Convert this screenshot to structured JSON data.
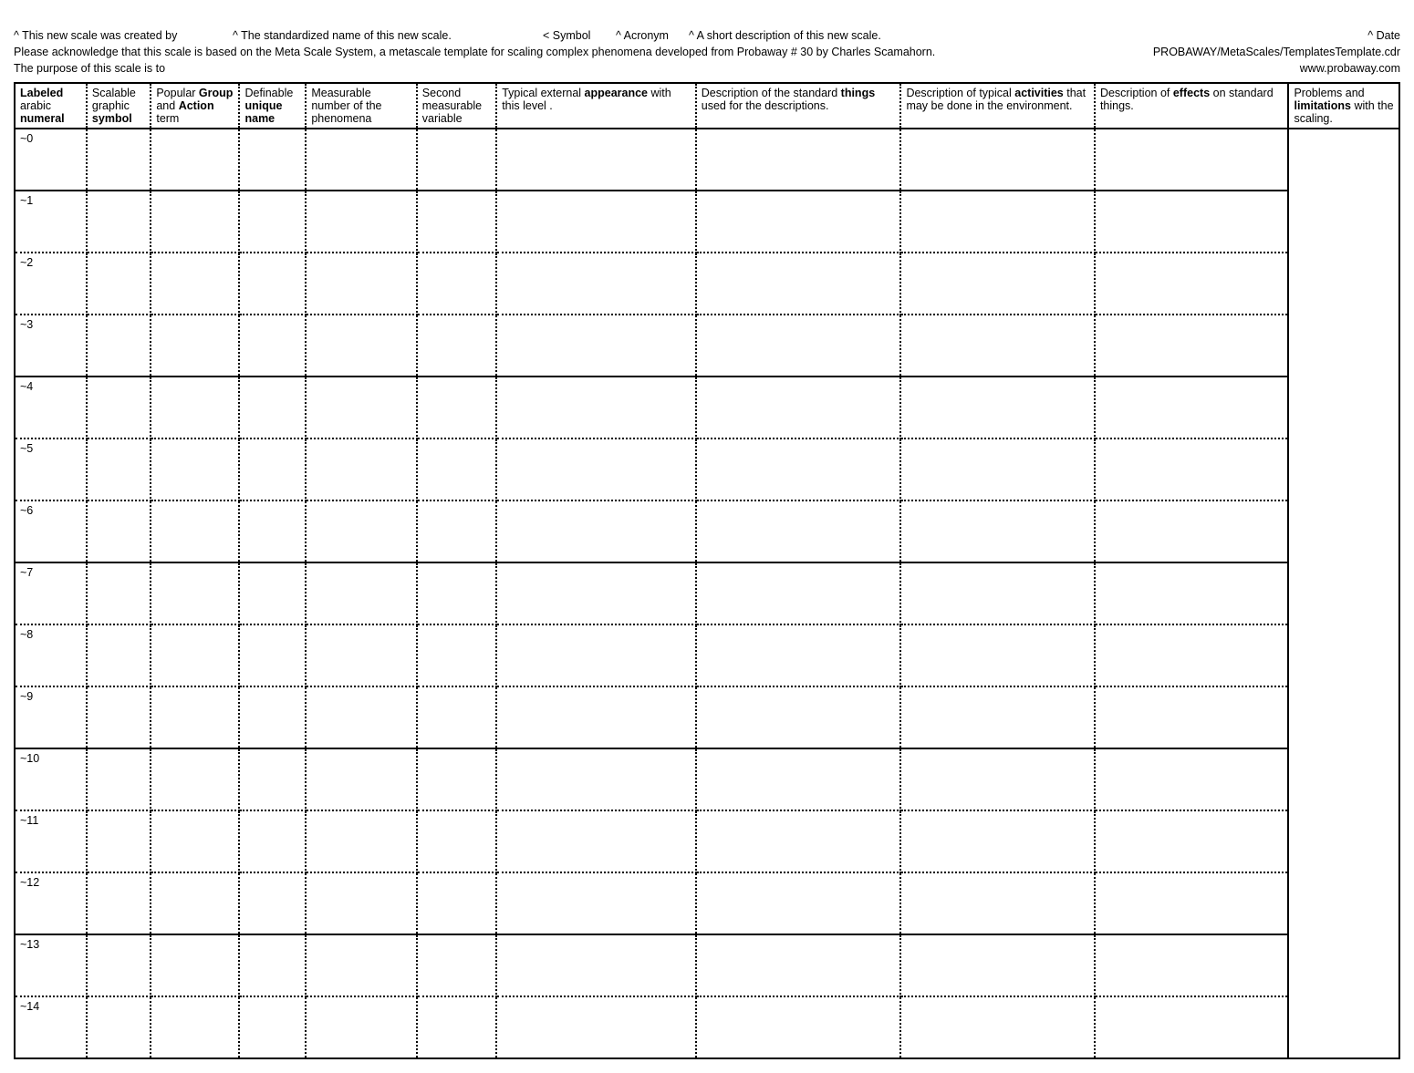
{
  "header": {
    "line1": {
      "created_by": "^ This new scale was created by",
      "std_name": "^ The standardized name of this new scale.",
      "symbol": "< Symbol",
      "acronym": "^ Acronym",
      "short_desc": "^ A short description of this new scale.",
      "date": "^ Date"
    },
    "line2": {
      "ack": "Please acknowledge that this scale is based on the Meta Scale System, a metascale template for scaling complex phenomena developed from Probaway # 30 by Charles Scamahorn.",
      "path": "PROBAWAY/MetaScales/TemplatesTemplate.cdr"
    },
    "line3": {
      "purpose": "The purpose of this scale is to",
      "site": "www.probaway.com"
    }
  },
  "columns": [
    {
      "pre": "",
      "bold": "Labeled",
      "post": " arabic ",
      "bold2": "numeral",
      "post2": ""
    },
    {
      "pre": "Scalable graphic ",
      "bold": "symbol",
      "post": ""
    },
    {
      "pre": "Popular ",
      "bold": "Group",
      "post": " and ",
      "bold2": "Action",
      "post2": " term"
    },
    {
      "pre": "Definable ",
      "bold": "unique name",
      "post": ""
    },
    {
      "pre": "Measurable number of the phenomena",
      "bold": "",
      "post": ""
    },
    {
      "pre": "Second measurable variable",
      "bold": "",
      "post": ""
    },
    {
      "pre": "Typical external ",
      "bold": "appearance",
      "post": " with this level ."
    },
    {
      "pre": "Description of the standard ",
      "bold": "things",
      "post": " used for the descriptions."
    },
    {
      "pre": "Description of typical ",
      "bold": "activities",
      "post": " that may be done in the environment."
    },
    {
      "pre": "Description of ",
      "bold": "effects",
      "post": " on standard things."
    },
    {
      "pre": "Problems and ",
      "bold": "limitations",
      "post": " with the scaling."
    }
  ],
  "rows": [
    {
      "n": "~0"
    },
    {
      "n": "~1"
    },
    {
      "n": "~2"
    },
    {
      "n": "~3"
    },
    {
      "n": "~4"
    },
    {
      "n": "~5"
    },
    {
      "n": "~6"
    },
    {
      "n": "~7"
    },
    {
      "n": "~8"
    },
    {
      "n": "~9"
    },
    {
      "n": "~10"
    },
    {
      "n": "~11"
    },
    {
      "n": "~12"
    },
    {
      "n": "~13"
    },
    {
      "n": "~14"
    }
  ],
  "layout": {
    "solid_after_rows": [
      0,
      3,
      6,
      9,
      12
    ],
    "row_count": 15
  }
}
